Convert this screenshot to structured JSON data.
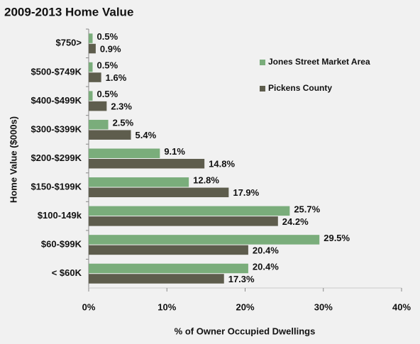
{
  "chart_data": {
    "type": "bar",
    "orientation": "horizontal",
    "title": "2009-2013  Home Value",
    "y_label": "Home Value ($000s)",
    "x_label": "% of Owner Occupied Dwellings",
    "categories": [
      "$750>",
      "$500-$749K",
      "$400-$499K",
      "$300-$399K",
      "$200-$299K",
      "$150-$199K",
      "$100-149k",
      "$60-$99K",
      "< $60K"
    ],
    "series": [
      {
        "name": "Jones Street Market Area",
        "color": "#7aad7b",
        "values": [
          0.5,
          0.5,
          0.5,
          2.5,
          9.1,
          12.8,
          25.7,
          29.5,
          20.4
        ],
        "value_labels": [
          "0.5%",
          "0.5%",
          "0.5%",
          "2.5%",
          "9.1%",
          "12.8%",
          "25.7%",
          "29.5%",
          "20.4%"
        ]
      },
      {
        "name": "Pickens County",
        "color": "#5e5d4d",
        "values": [
          0.9,
          1.6,
          2.3,
          5.4,
          14.8,
          17.9,
          24.2,
          20.4,
          17.3
        ],
        "value_labels": [
          "0.9%",
          "1.6%",
          "2.3%",
          "5.4%",
          "14.8%",
          "17.9%",
          "24.2%",
          "20.4%",
          "17.3%"
        ]
      }
    ],
    "xlim": [
      0,
      40
    ],
    "xticks": [
      {
        "value": 0,
        "label": "0%"
      },
      {
        "value": 10,
        "label": "10%"
      },
      {
        "value": 20,
        "label": "20%"
      },
      {
        "value": 30,
        "label": "30%"
      },
      {
        "value": 40,
        "label": "40%"
      }
    ],
    "legend": "right",
    "grid": false
  }
}
